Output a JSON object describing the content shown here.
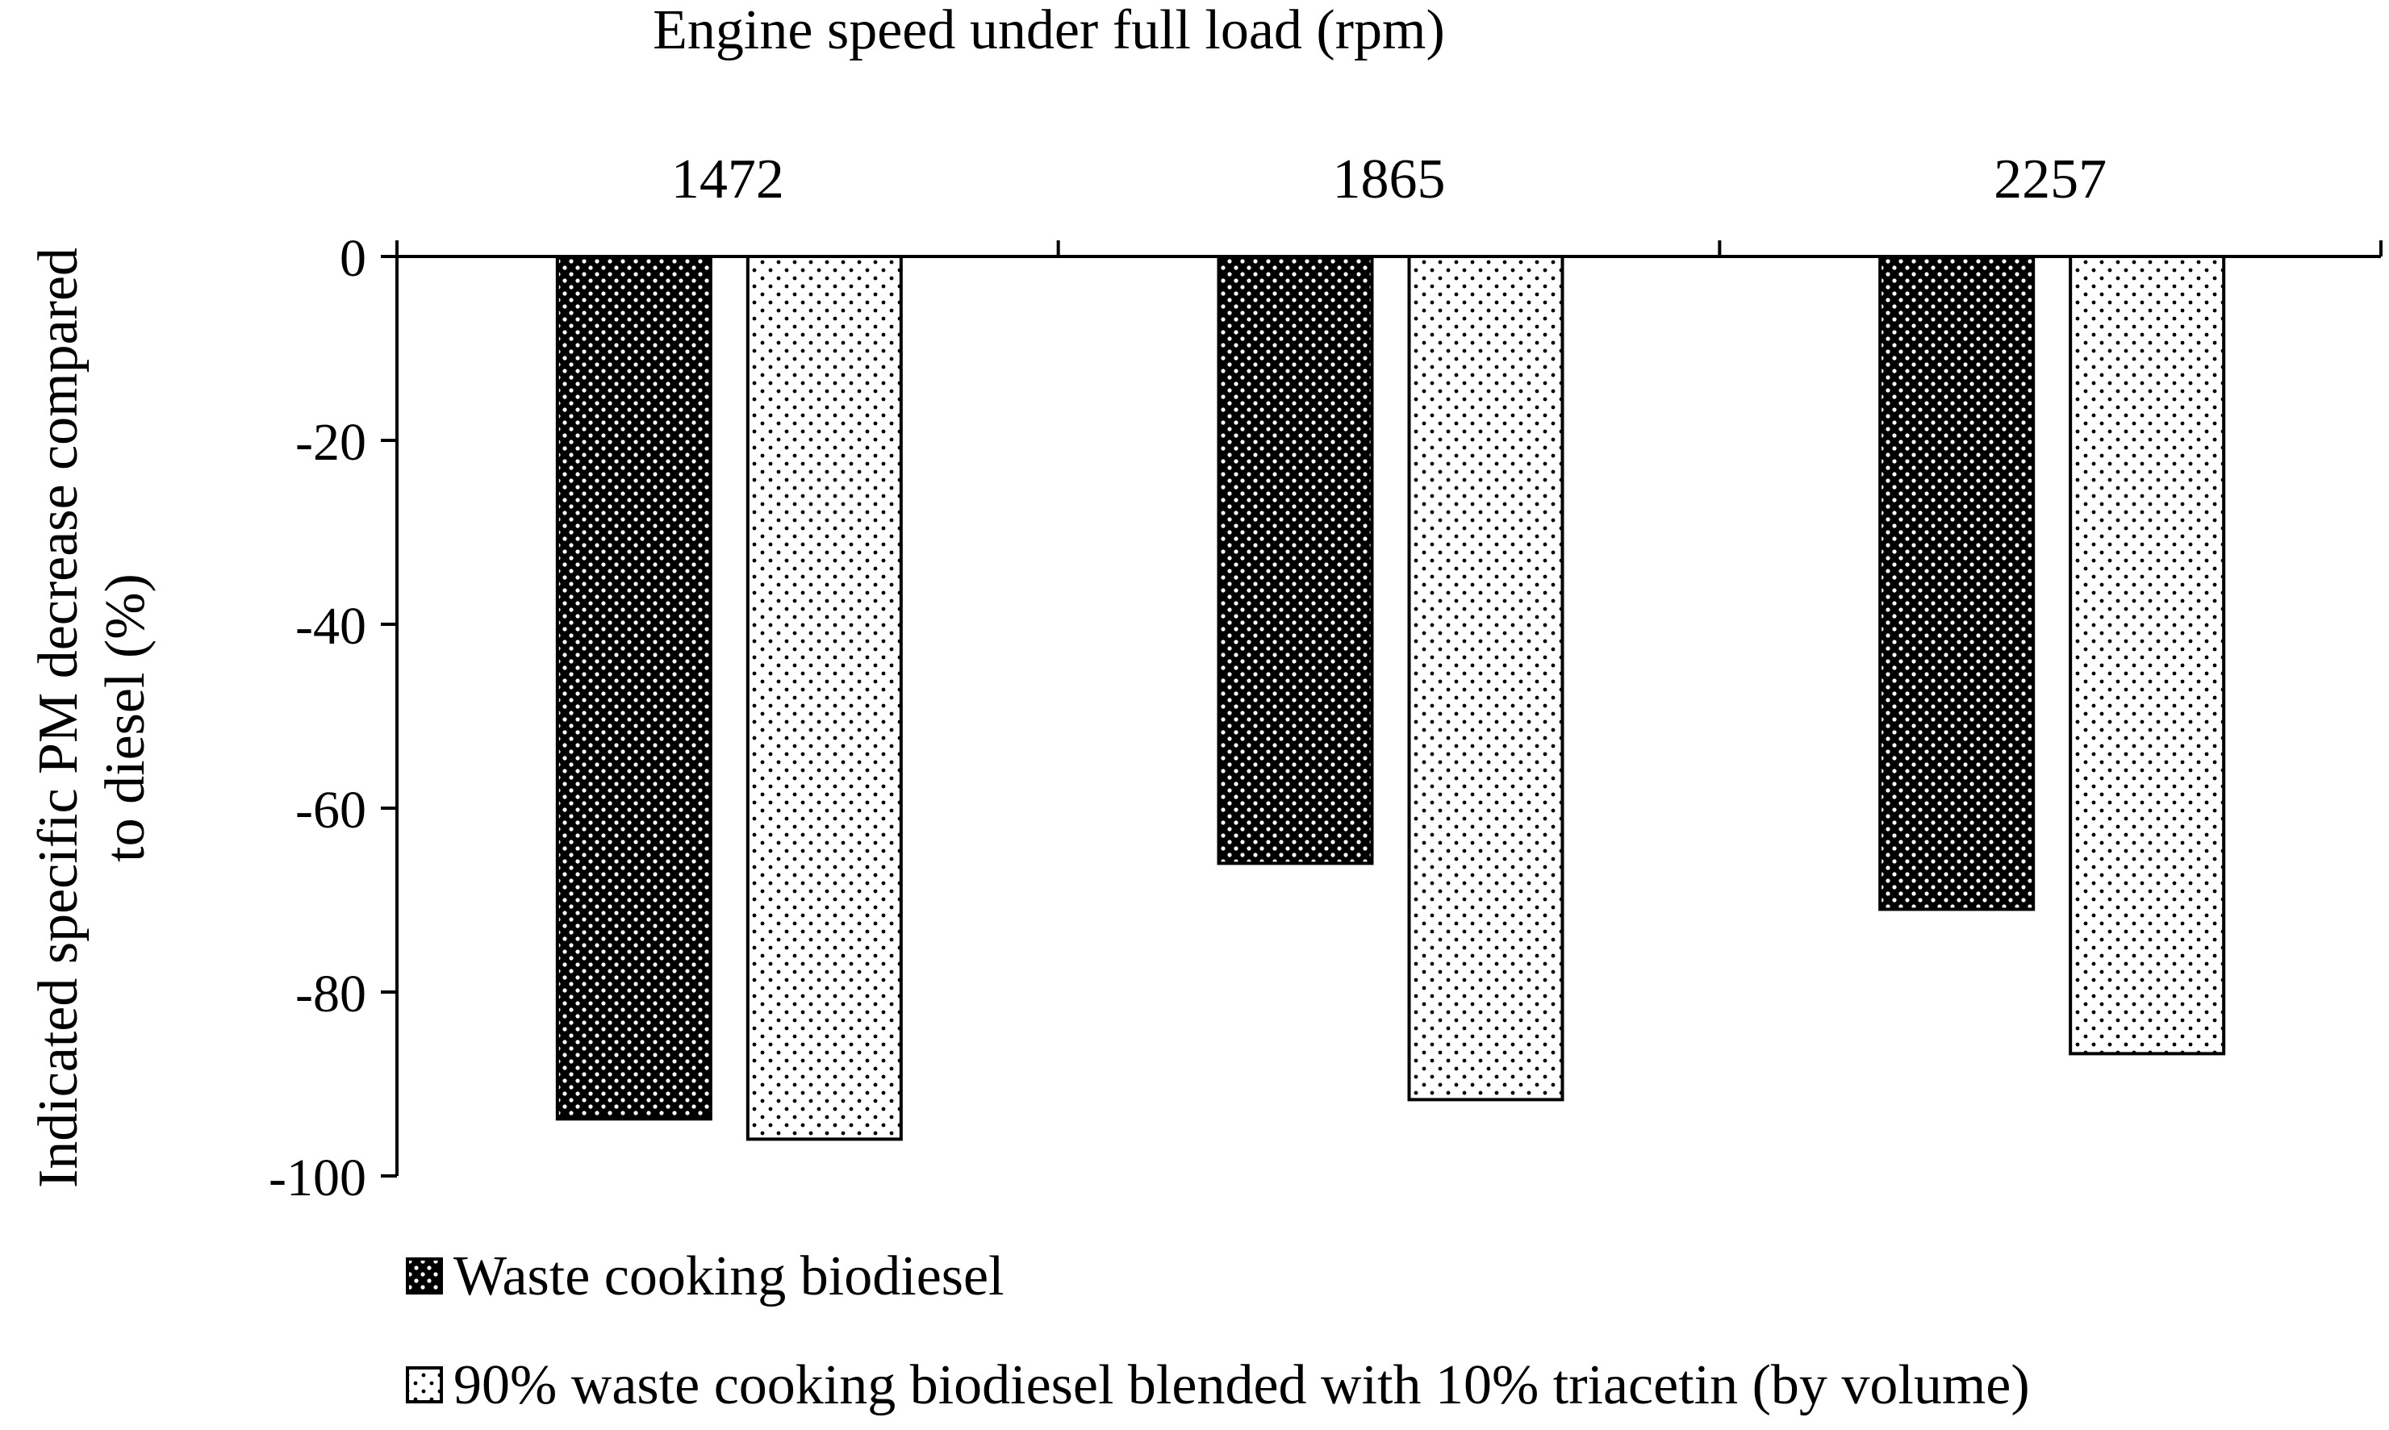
{
  "chart_data": {
    "type": "bar",
    "title": "",
    "xlabel": "Engine speed under full load (rpm)",
    "ylabel": "Indicated specific PM decrease compared to diesel (%)",
    "ylabel_lines": [
      "Indicated specific PM decrease compared",
      "to diesel (%)"
    ],
    "categories": [
      "1472",
      "1865",
      "2257"
    ],
    "series": [
      {
        "name": "Waste cooking biodiesel",
        "values": [
          -93.8,
          -66.0,
          -71.0
        ],
        "pattern": "dense-dots-dark"
      },
      {
        "name": "90% waste cooking biodiesel blended with 10% triacetin (by volume)",
        "values": [
          -96.0,
          -91.7,
          -86.7
        ],
        "pattern": "sparse-dots-light"
      }
    ],
    "ylim": [
      -100,
      0
    ],
    "yticks": [
      "0",
      "-20",
      "-40",
      "-60",
      "-80",
      "-100"
    ],
    "ytick_values": [
      0,
      -20,
      -40,
      -60,
      -80,
      -100
    ],
    "x_axis_position": "top",
    "grid": false,
    "legend_position": "bottom-left",
    "colors": {
      "dark_fill": "#000000",
      "light_fill": "#ffffff",
      "stroke": "#000000"
    }
  }
}
